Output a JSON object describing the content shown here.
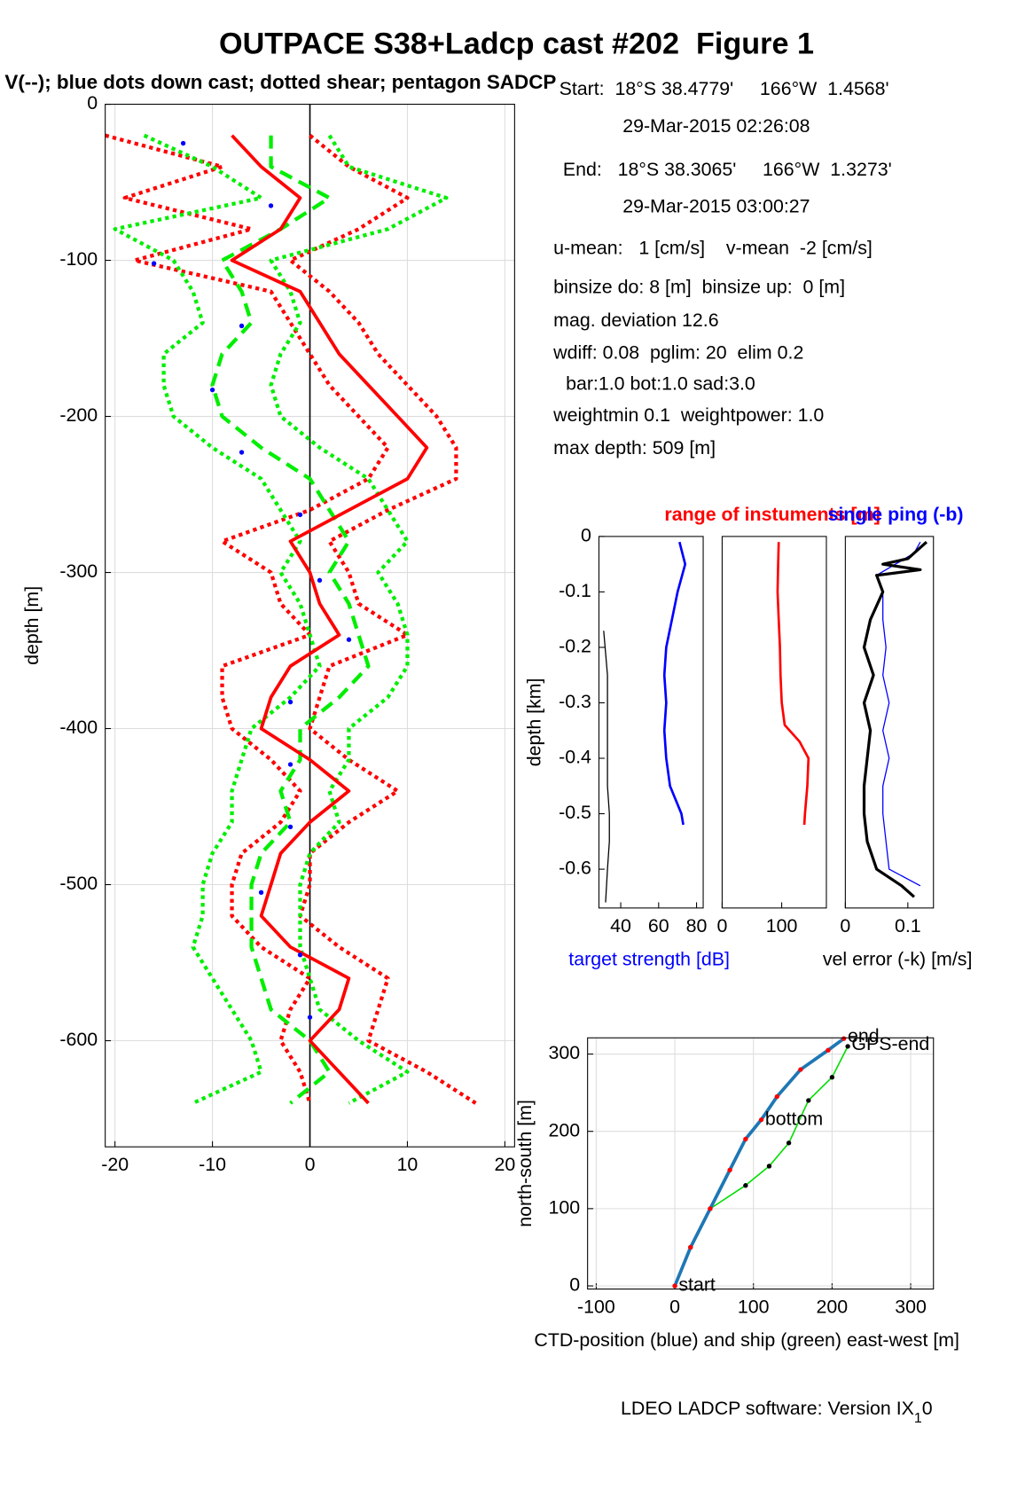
{
  "chart_data": [
    {
      "type": "line",
      "title": "OUTPACE S38+Ladcp cast #202  Figure 1",
      "subtitle": "V(--); blue dots down cast; dotted shear; pentagon SADCP",
      "ylabel": "depth [m]",
      "xlim": [
        -21,
        21
      ],
      "ylim": [
        -668,
        0
      ],
      "xticks": [
        -20,
        -10,
        0,
        10,
        20
      ],
      "yticks": [
        0,
        -100,
        -200,
        -300,
        -400,
        -500,
        -600
      ],
      "grid": true,
      "series": [
        {
          "color": "#ff0000",
          "style": "dotted",
          "width": 4,
          "depths": [
            -20,
            -40,
            -60,
            -80,
            -100,
            -120,
            -140,
            -160,
            -180,
            -200,
            -220,
            -240,
            -260,
            -280,
            -300,
            -320,
            -340,
            -360,
            -380,
            -400,
            -420,
            -440,
            -460,
            -480,
            -500,
            -520,
            -540,
            -560,
            -580,
            -600,
            -620,
            -640
          ],
          "values": [
            -21,
            -9,
            -19,
            -6,
            -18,
            -4,
            -2,
            0,
            2,
            5,
            8,
            6,
            0,
            -9,
            -4,
            -3,
            0,
            -9,
            -9,
            -8,
            -4,
            -1,
            -3,
            -7,
            -8,
            -8,
            -5,
            0,
            -2,
            -3,
            -1,
            0
          ]
        },
        {
          "color": "#ff0000",
          "style": "dotted",
          "width": 4,
          "depths": [
            -20,
            -40,
            -60,
            -80,
            -100,
            -120,
            -140,
            -160,
            -180,
            -200,
            -220,
            -240,
            -260,
            -280,
            -300,
            -320,
            -340,
            -360,
            -380,
            -400,
            -420,
            -440,
            -460,
            -480,
            -500,
            -520,
            -540,
            -560,
            -580,
            -600,
            -620,
            -640
          ],
          "values": [
            0,
            4,
            10,
            5,
            -2,
            2,
            5,
            7,
            10,
            13,
            15,
            15,
            8,
            2,
            4,
            5,
            10,
            2,
            1,
            0,
            4,
            9,
            4,
            0,
            0,
            -1,
            3,
            8,
            7,
            6,
            12,
            17
          ]
        },
        {
          "color": "#00ee00",
          "style": "dotted",
          "width": 4,
          "depths": [
            -20,
            -40,
            -60,
            -80,
            -100,
            -120,
            -140,
            -160,
            -180,
            -200,
            -220,
            -240,
            -260,
            -280,
            -300,
            -320,
            -340,
            -360,
            -380,
            -400,
            -420,
            -440,
            -460,
            -480,
            -500,
            -520,
            -540,
            -560,
            -580,
            -600,
            -620,
            -640
          ],
          "values": [
            -17,
            -10,
            -5,
            -20,
            -14,
            -12,
            -11,
            -15,
            -15,
            -14,
            -10,
            -5,
            -3,
            -1,
            -3,
            -1,
            0,
            1,
            -2,
            -6,
            -7,
            -8,
            -8,
            -10,
            -11,
            -11,
            -12,
            -10,
            -8,
            -6,
            -5,
            -12
          ]
        },
        {
          "color": "#00ee00",
          "style": "dotted",
          "width": 4,
          "depths": [
            -20,
            -40,
            -60,
            -80,
            -100,
            -120,
            -140,
            -160,
            -180,
            -200,
            -220,
            -240,
            -260,
            -280,
            -300,
            -320,
            -340,
            -360,
            -380,
            -400,
            -420,
            -440,
            -460,
            -480,
            -500,
            -520,
            -540,
            -560,
            -580,
            -600,
            -620,
            -640
          ],
          "values": [
            2,
            4,
            14,
            8,
            -4,
            -2,
            -1,
            -3,
            -4,
            -3,
            1,
            6,
            8,
            10,
            7,
            9,
            10,
            10,
            8,
            4,
            4,
            2,
            3,
            0,
            -1,
            -1,
            -1,
            0,
            1,
            5,
            10,
            4
          ]
        },
        {
          "color": "#00ee00",
          "style": "dashed",
          "width": 4,
          "depths": [
            -20,
            -40,
            -60,
            -80,
            -100,
            -120,
            -140,
            -160,
            -180,
            -200,
            -220,
            -240,
            -260,
            -280,
            -300,
            -320,
            -340,
            -360,
            -380,
            -400,
            -420,
            -440,
            -460,
            -480,
            -500,
            -520,
            -540,
            -560,
            -580,
            -600,
            -620,
            -640
          ],
          "values": [
            -4,
            -4,
            2,
            -3,
            -9,
            -7,
            -6,
            -9,
            -10,
            -9,
            -5,
            0,
            2,
            4,
            2,
            4,
            5,
            6,
            3,
            -1,
            -1,
            -3,
            -2,
            -5,
            -6,
            -6,
            -6,
            -5,
            -4,
            0,
            2,
            -2
          ]
        },
        {
          "color": "#ff0000",
          "style": "solid",
          "width": 3.5,
          "depths": [
            -20,
            -40,
            -60,
            -80,
            -100,
            -120,
            -140,
            -160,
            -180,
            -200,
            -220,
            -240,
            -260,
            -280,
            -300,
            -320,
            -340,
            -360,
            -380,
            -400,
            -420,
            -440,
            -460,
            -480,
            -500,
            -520,
            -540,
            -560,
            -580,
            -600,
            -620,
            -640
          ],
          "values": [
            -8,
            -5,
            -1,
            -3,
            -8,
            -1,
            1,
            3,
            6,
            9,
            12,
            10,
            4,
            -2,
            0,
            1,
            3,
            -2,
            -4,
            -5,
            0,
            4,
            0,
            -3,
            -4,
            -5,
            -2,
            4,
            3,
            0,
            3,
            6
          ]
        },
        {
          "color": "#0000ff",
          "style": "dots",
          "width": 2,
          "depths": [
            -25,
            -65,
            -102,
            -142,
            -183,
            -223,
            -263,
            -305,
            -343,
            -383,
            -423,
            -463,
            -505,
            -545,
            -585
          ],
          "values": [
            -13,
            -4,
            -16,
            -7,
            -10,
            -7,
            -1,
            1,
            4,
            -2,
            -2,
            -2,
            -5,
            -1,
            0
          ]
        }
      ]
    },
    {
      "type": "line",
      "ylabel": "depth [km]",
      "xlabel": "target strength [dB]",
      "xlabel_color": "#0000ff",
      "xlim": [
        28.5,
        83.5
      ],
      "ylim": [
        -0.67,
        0
      ],
      "xticks": [
        40,
        60,
        80
      ],
      "yticks": [
        0,
        -0.1,
        -0.2,
        -0.3,
        -0.4,
        -0.5,
        -0.6
      ],
      "series": [
        {
          "color": "#000000",
          "style": "solid",
          "width": 1.2,
          "depths": [
            -0.17,
            -0.25,
            -0.35,
            -0.45,
            -0.5,
            -0.55,
            -0.6,
            -0.66
          ],
          "values": [
            31,
            33,
            33,
            33,
            34,
            34,
            33,
            32
          ]
        },
        {
          "color": "#0000ff",
          "style": "solid",
          "width": 2.5,
          "depths": [
            -0.01,
            -0.05,
            -0.1,
            -0.15,
            -0.2,
            -0.25,
            -0.3,
            -0.35,
            -0.4,
            -0.45,
            -0.5,
            -0.52
          ],
          "values": [
            71,
            74,
            70,
            67,
            64,
            63,
            64,
            63,
            64,
            66,
            72,
            73
          ]
        }
      ]
    },
    {
      "type": "line",
      "title": "range of instuments [m]",
      "title_color": "#ff0000",
      "xlim": [
        0,
        175
      ],
      "ylim": [
        -0.67,
        0
      ],
      "xticks": [
        0,
        100
      ],
      "series": [
        {
          "color": "#ff0000",
          "style": "solid",
          "width": 2.5,
          "depths": [
            -0.01,
            -0.05,
            -0.1,
            -0.15,
            -0.2,
            -0.25,
            -0.3,
            -0.34,
            -0.37,
            -0.4,
            -0.45,
            -0.5,
            -0.52
          ],
          "values": [
            95,
            94,
            93,
            95,
            97,
            98,
            100,
            105,
            130,
            145,
            143,
            139,
            138
          ]
        }
      ]
    },
    {
      "type": "line",
      "title": "single ping (-b)",
      "title_color": "#0000ff",
      "xlabel": "vel error (-k) [m/s]",
      "xlabel_color": "#000000",
      "xlim": [
        0,
        0.141
      ],
      "ylim": [
        -0.67,
        0
      ],
      "xticks": [
        0,
        0.1
      ],
      "series": [
        {
          "color": "#0000ff",
          "style": "solid",
          "width": 1.2,
          "depths": [
            -0.01,
            -0.03,
            -0.05,
            -0.07,
            -0.1,
            -0.15,
            -0.2,
            -0.25,
            -0.3,
            -0.35,
            -0.4,
            -0.45,
            -0.5,
            -0.55,
            -0.6,
            -0.63
          ],
          "values": [
            0.12,
            0.11,
            0.08,
            0.05,
            0.06,
            0.06,
            0.065,
            0.06,
            0.07,
            0.06,
            0.07,
            0.06,
            0.06,
            0.065,
            0.07,
            0.12
          ]
        },
        {
          "color": "#000000",
          "style": "solid",
          "width": 3,
          "depths": [
            -0.01,
            -0.04,
            -0.05,
            -0.06,
            -0.07,
            -0.1,
            -0.15,
            -0.2,
            -0.25,
            -0.3,
            -0.35,
            -0.4,
            -0.45,
            -0.5,
            -0.55,
            -0.6,
            -0.63,
            -0.65
          ],
          "values": [
            0.13,
            0.1,
            0.06,
            0.12,
            0.05,
            0.06,
            0.04,
            0.03,
            0.045,
            0.03,
            0.04,
            0.035,
            0.03,
            0.03,
            0.035,
            0.05,
            0.09,
            0.11
          ]
        }
      ]
    },
    {
      "type": "line",
      "xlabel": "CTD-position (blue) and ship (green) east-west [m]",
      "ylabel": "north-south [m]",
      "xlim": [
        -111,
        329
      ],
      "ylim": [
        -4,
        321
      ],
      "xticks": [
        -100,
        0,
        100,
        200,
        300
      ],
      "yticks": [
        0,
        100,
        200,
        300
      ],
      "grid": true,
      "series": [
        {
          "color": "#00dd00",
          "style": "solid",
          "width": 1.5,
          "marker_color": "#000000",
          "x": [
            0,
            20,
            45,
            90,
            120,
            145,
            170,
            200,
            220
          ],
          "values": [
            0,
            50,
            100,
            130,
            155,
            185,
            240,
            270,
            310
          ]
        },
        {
          "color": "#1f77b4",
          "style": "solid",
          "width": 3.5,
          "marker_color": "#ff0000",
          "x": [
            0,
            20,
            45,
            70,
            90,
            110,
            130,
            160,
            195,
            215
          ],
          "values": [
            0,
            50,
            100,
            150,
            190,
            215,
            245,
            280,
            305,
            320
          ]
        }
      ],
      "annotations": [
        {
          "text": "start",
          "x": 0,
          "y": 0
        },
        {
          "text": "bottom",
          "x": 110,
          "y": 215
        },
        {
          "text": "end",
          "x": 215,
          "y": 322
        },
        {
          "text": "GPS-end",
          "x": 220,
          "y": 312
        }
      ]
    }
  ],
  "info": [
    "Start:  18°S 38.4779'     166°W  1.4568'",
    "29-Mar-2015 02:26:08",
    "End:   18°S 38.3065'     166°W  1.3273'",
    "29-Mar-2015 03:00:27",
    "u-mean:   1 [cm/s]    v-mean  -2 [cm/s]",
    "binsize do: 8 [m]  binsize up:  0 [m]",
    "mag. deviation 12.6",
    "wdiff: 0.08  pglim: 20  elim 0.2",
    "bar:1.0 bot:1.0 sad:3.0",
    "weightmin 0.1  weightpower: 1.0",
    "max depth: 509 [m]"
  ],
  "footer": {
    "text": "LDEO LADCP software: Version IX",
    "sub": "1",
    "after": "0"
  }
}
